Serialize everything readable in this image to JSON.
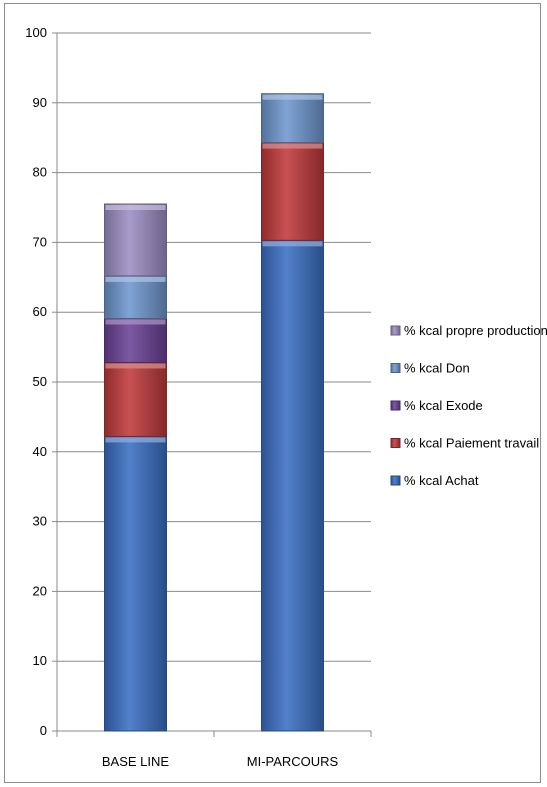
{
  "chart_data": {
    "type": "bar",
    "stacked": true,
    "categories": [
      "BASE LINE",
      "MI-PARCOURS"
    ],
    "series": [
      {
        "name": "% kcal Achat",
        "values": [
          42.2,
          70.3
        ],
        "color": "#3a6fc4"
      },
      {
        "name": "% kcal Paiement travail",
        "values": [
          10.6,
          14.0
        ],
        "color": "#c0393b"
      },
      {
        "name": "% kcal Exode",
        "values": [
          6.3,
          0
        ],
        "color": "#6a4296"
      },
      {
        "name": "% kcal Don",
        "values": [
          6.1,
          7.0
        ],
        "color": "#6f98cf"
      },
      {
        "name": "% kcal propre production",
        "values": [
          10.3,
          0
        ],
        "color": "#9d8ec4"
      }
    ],
    "ylim": [
      0,
      100
    ],
    "yticks": [
      "0",
      "10",
      "20",
      "30",
      "40",
      "50",
      "60",
      "70",
      "80",
      "90",
      "100"
    ],
    "grid": true,
    "legend_position": "right"
  }
}
